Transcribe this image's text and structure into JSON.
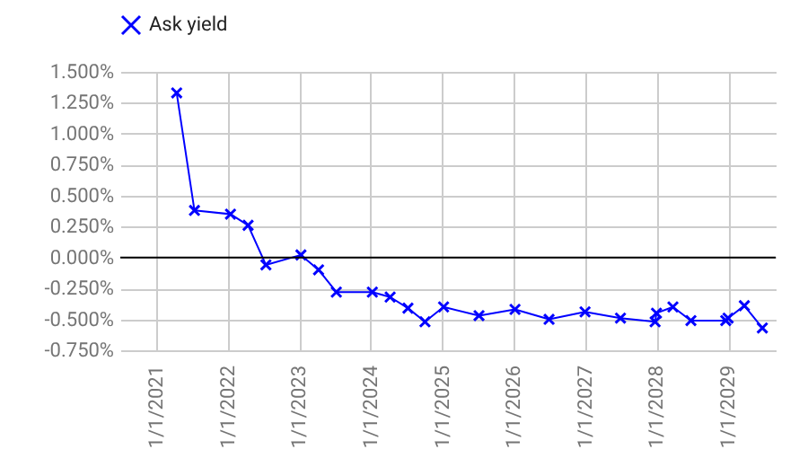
{
  "chart_data": {
    "type": "line",
    "x": [
      "2021-04-15",
      "2021-07-15",
      "2022-01-15",
      "2022-04-15",
      "2022-07-15",
      "2023-01-10",
      "2023-04-10",
      "2023-07-10",
      "2024-01-10",
      "2024-04-10",
      "2024-07-10",
      "2024-10-05",
      "2025-01-08",
      "2025-07-08",
      "2026-01-08",
      "2026-07-01",
      "2027-01-01",
      "2027-07-01",
      "2027-12-25",
      "2028-01-01",
      "2028-03-25",
      "2028-06-25",
      "2028-12-20",
      "2029-01-01",
      "2029-03-25",
      "2029-06-25"
    ],
    "series": [
      {
        "name": "Ask yield",
        "color": "#0000ff",
        "values": [
          1.33,
          0.38,
          0.35,
          0.26,
          -0.06,
          0.02,
          -0.1,
          -0.28,
          -0.28,
          -0.32,
          -0.41,
          -0.52,
          -0.4,
          -0.47,
          -0.42,
          -0.5,
          -0.44,
          -0.49,
          -0.52,
          -0.45,
          -0.4,
          -0.51,
          -0.51,
          -0.49,
          -0.39,
          -0.57
        ]
      }
    ],
    "xlim": [
      "2020-07-01",
      "2029-09-01"
    ],
    "xticks": [
      {
        "value": "2021-01-01",
        "label": "1/1/2021"
      },
      {
        "value": "2022-01-01",
        "label": "1/1/2022"
      },
      {
        "value": "2023-01-01",
        "label": "1/1/2023"
      },
      {
        "value": "2024-01-01",
        "label": "1/1/2024"
      },
      {
        "value": "2025-01-01",
        "label": "1/1/2025"
      },
      {
        "value": "2026-01-01",
        "label": "1/1/2026"
      },
      {
        "value": "2027-01-01",
        "label": "1/1/2027"
      },
      {
        "value": "2028-01-01",
        "label": "1/1/2028"
      },
      {
        "value": "2029-01-01",
        "label": "1/1/2029"
      }
    ],
    "ylim": [
      -0.75,
      1.5
    ],
    "yticks": [
      {
        "value": -0.75,
        "label": "-0.750%"
      },
      {
        "value": -0.5,
        "label": "-0.500%"
      },
      {
        "value": -0.25,
        "label": "-0.250%"
      },
      {
        "value": 0,
        "label": "0.000%"
      },
      {
        "value": 0.25,
        "label": "0.250%"
      },
      {
        "value": 0.5,
        "label": "0.500%"
      },
      {
        "value": 0.75,
        "label": "0.750%"
      },
      {
        "value": 1,
        "label": "1.000%"
      },
      {
        "value": 1.25,
        "label": "1.250%"
      },
      {
        "value": 1.5,
        "label": "1.500%"
      }
    ],
    "ref_lines": [
      {
        "axis": "y",
        "value": 0,
        "color": "#000000"
      }
    ],
    "grid": true,
    "legend": "top",
    "marker": "cross",
    "line_style": "solid"
  }
}
